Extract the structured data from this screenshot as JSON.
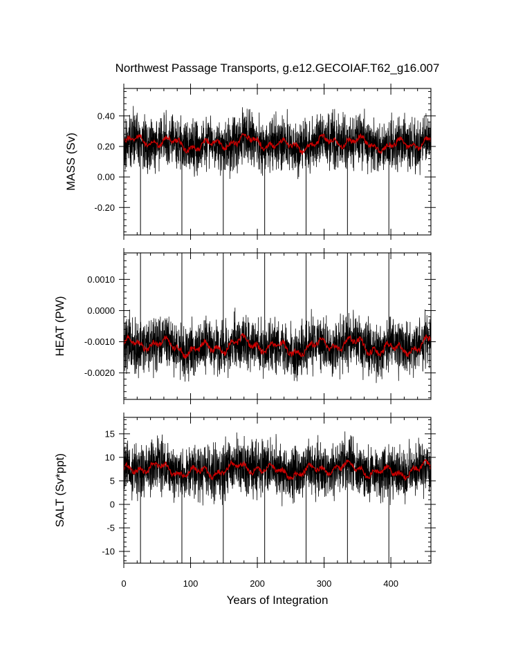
{
  "chart_data": [
    {
      "type": "line",
      "title": "Northwest Passage Transports, g.e12.GECOIAF.T62_g16.007",
      "xlabel": "",
      "ylabel": "MASS (Sv)",
      "xlim": [
        0,
        460
      ],
      "ylim": [
        -0.38,
        0.58
      ],
      "yticks": [
        "0.40",
        "0.20",
        "0.00",
        "-0.20"
      ],
      "ytick_values": [
        0.4,
        0.2,
        0.0,
        -0.2
      ],
      "xticks": [],
      "grid": false,
      "series": [
        {
          "role": "monthly",
          "color": "#000000",
          "base": 0.22,
          "amplitude": 0.11,
          "spike_value": -0.38
        },
        {
          "role": "smoothed",
          "color": "#cc0000",
          "base": 0.22,
          "amplitude": 0.035
        }
      ],
      "spike_years": [
        25,
        87,
        149,
        211,
        273,
        335,
        397
      ]
    },
    {
      "type": "line",
      "xlabel": "",
      "ylabel": "HEAT (PW)",
      "xlim": [
        0,
        460
      ],
      "ylim": [
        -0.00285,
        0.00185
      ],
      "yticks": [
        "0.0010",
        "0.0000",
        "-0.0010",
        "-0.0020"
      ],
      "ytick_values": [
        0.001,
        0.0,
        -0.001,
        -0.002
      ],
      "xticks": [],
      "grid": false,
      "series": [
        {
          "role": "monthly",
          "color": "#000000",
          "base": -0.00115,
          "amplitude": 0.00055,
          "spike_value": 0.00185
        },
        {
          "role": "smoothed",
          "color": "#cc0000",
          "base": -0.00115,
          "amplitude": 0.0002
        }
      ],
      "spike_years": [
        25,
        87,
        149,
        211,
        273,
        335,
        397
      ]
    },
    {
      "type": "line",
      "xlabel": "Years of Integration",
      "ylabel": "SALT (Sv*ppt)",
      "xlim": [
        0,
        460
      ],
      "ylim": [
        -12.5,
        18.5
      ],
      "yticks": [
        "15",
        "10",
        "5",
        "0",
        "-5",
        "-10"
      ],
      "ytick_values": [
        15,
        10,
        5,
        0,
        -5,
        -10
      ],
      "xticks": [
        "0",
        "100",
        "200",
        "300",
        "400"
      ],
      "xtick_values": [
        0,
        100,
        200,
        300,
        400
      ],
      "grid": false,
      "series": [
        {
          "role": "monthly",
          "color": "#000000",
          "base": 7.3,
          "amplitude": 3.6,
          "spike_value": -12.5
        },
        {
          "role": "smoothed",
          "color": "#cc0000",
          "base": 7.3,
          "amplitude": 1.1
        }
      ],
      "spike_years": [
        25,
        87,
        149,
        211,
        273,
        335,
        397
      ]
    }
  ]
}
